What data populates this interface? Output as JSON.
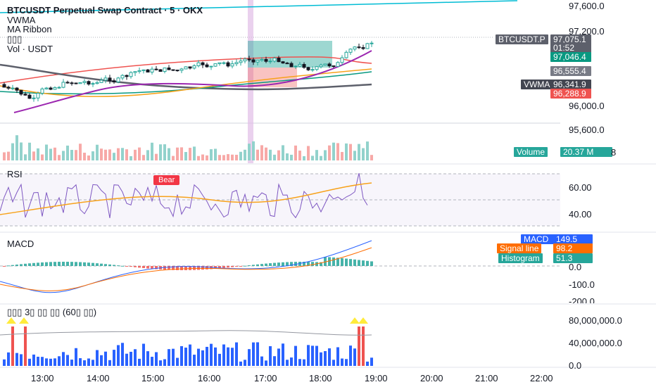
{
  "header": {
    "title": "BTCUSDT Perpetual Swap Contract · 5 · OKX",
    "indicators": [
      "VWMA",
      "MA Ribbon",
      "▯▯▯",
      "Vol · USDT"
    ]
  },
  "price_axis": {
    "ticks": [
      "97,600.0",
      "97,200.0",
      "96,000.0",
      "95,600.0"
    ],
    "last_price": "97,075.1",
    "countdown": "01:52",
    "symbol_label": "BTCUSDT.P",
    "ma_value": "97,046.4",
    "ribbon_value": "96,555.4",
    "vwma_label": "VWMA",
    "vwma_value": "96,341.9",
    "red_value": "96,288.9",
    "volume_label": "Volume",
    "volume_value": "20.37 M",
    "volume_suffix": "8"
  },
  "rsi": {
    "label": "RSI",
    "ticks": [
      "60.00",
      "40.00"
    ],
    "bear_label": "Bear"
  },
  "macd": {
    "label": "MACD",
    "ticks": [
      "0.0",
      "-100.0",
      "-200.0"
    ],
    "badges": {
      "macd_label": "MACD",
      "macd_value": "149.5",
      "signal_label": "Signal line",
      "signal_value": "98.2",
      "hist_label": "Histogram",
      "hist_value": "51.3"
    }
  },
  "volume_pane": {
    "label": "▯▯▯ 3▯ ▯▯ ▯▯ (60▯ ▯▯)",
    "ticks": [
      "80,000,000.0",
      "40,000,000.0",
      "0.0"
    ]
  },
  "time_axis": {
    "ticks": [
      "13:00",
      "14:00",
      "15:00",
      "16:00",
      "17:00",
      "18:00",
      "19:00",
      "20:00",
      "21:00",
      "22:00"
    ]
  },
  "colors": {
    "up": "#26a69a",
    "down": "#ef5350",
    "vwma": "#5d606b",
    "ma_red": "#ef5350",
    "ma_orange": "#f7a21b",
    "ma_green": "#089981",
    "ma_purple": "#9c27b0",
    "cyan": "#00bcd4",
    "macd_blue": "#2962ff",
    "signal_orange": "#ff6d00",
    "rsi_purple": "#7e57c2"
  }
}
